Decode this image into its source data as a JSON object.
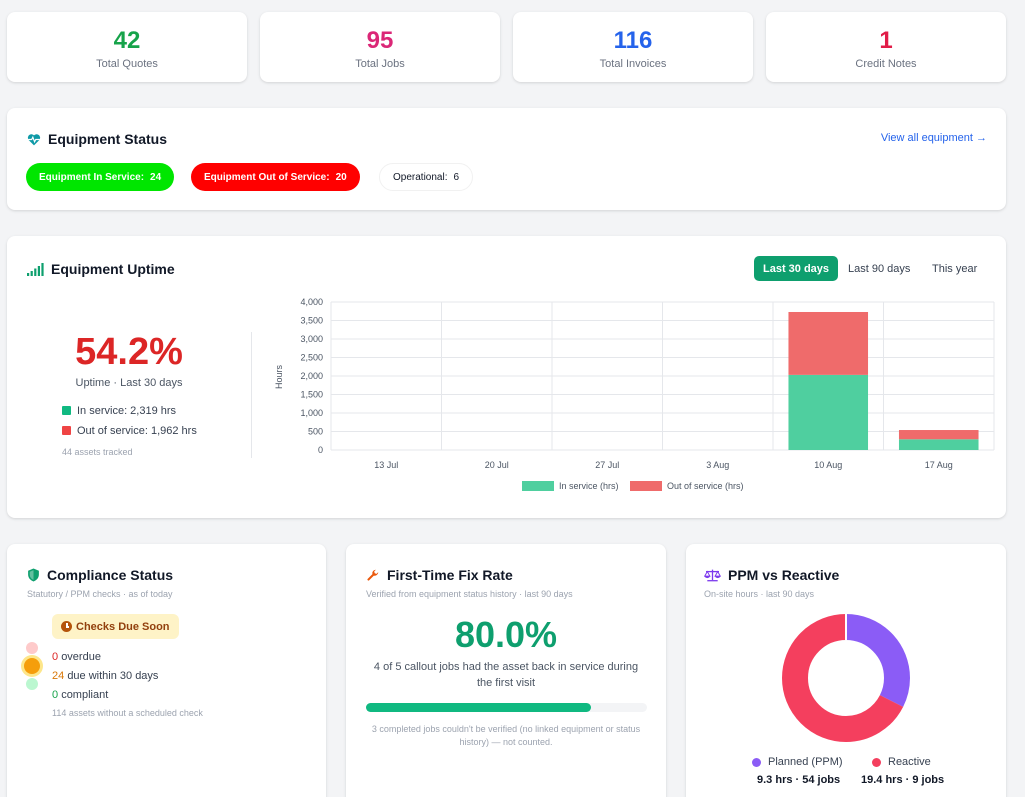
{
  "kpis": [
    {
      "value": "42",
      "label": "Total Quotes",
      "color": "#16a34a"
    },
    {
      "value": "95",
      "label": "Total Jobs",
      "color": "#db2777"
    },
    {
      "value": "116",
      "label": "Total Invoices",
      "color": "#2563eb"
    },
    {
      "value": "1",
      "label": "Credit Notes",
      "color": "#e11d48"
    }
  ],
  "equipment_status": {
    "title": "Equipment Status",
    "view_all": "View all equipment →",
    "in_service": {
      "label": "Equipment In Service:",
      "value": "24",
      "color": "#00e600"
    },
    "out_of_service": {
      "label": "Equipment Out of Service:",
      "value": "20",
      "color": "#ff0000"
    },
    "operational": {
      "label": "Operational:",
      "value": "6"
    }
  },
  "uptime": {
    "title": "Equipment Uptime",
    "ranges": [
      "Last 30 days",
      "Last 90 days",
      "This year"
    ],
    "active_range": "Last 30 days",
    "percent": "54.2%",
    "caption": "Uptime · Last 30 days",
    "in_service": "In service: 2,319 hrs",
    "out_of_service": "Out of service: 1,962 hrs",
    "assets": "44 assets tracked",
    "colors": {
      "in_service": "#4fcf9f",
      "out_of_service": "#ef6b6b"
    }
  },
  "chart_data": {
    "type": "bar",
    "stacked": true,
    "categories": [
      "13 Jul",
      "20 Jul",
      "27 Jul",
      "3 Aug",
      "10 Aug",
      "17 Aug"
    ],
    "series": [
      {
        "name": "In service (hrs)",
        "values": [
          0,
          0,
          0,
          0,
          2030,
          290
        ]
      },
      {
        "name": "Out of service (hrs)",
        "values": [
          0,
          0,
          0,
          0,
          1700,
          250
        ]
      }
    ],
    "ylabel": "Hours",
    "ylim": [
      0,
      4000
    ],
    "yticks": [
      "4,000",
      "3,500",
      "3,000",
      "2,500",
      "2,000",
      "1,500",
      "1,000",
      "500",
      "0"
    ],
    "grid": true,
    "legend": "bottom"
  },
  "compliance": {
    "title": "Compliance Status",
    "subtitle": "Statutory / PPM checks · as of today",
    "badge": "Checks Due Soon",
    "rows": [
      {
        "value": "0",
        "text": "overdue",
        "color": "#dc2626"
      },
      {
        "value": "24",
        "text": "due within 30 days",
        "color": "#d97706"
      },
      {
        "value": "0",
        "text": "compliant",
        "color": "#16a34a"
      }
    ],
    "note": "114 assets without a scheduled check"
  },
  "first_fix": {
    "title": "First-Time Fix Rate",
    "subtitle": "Verified from equipment status history · last 90 days",
    "percent": "80.0%",
    "progress": 0.8,
    "description": "4 of 5 callout jobs had the asset back in service during the first visit",
    "note": "3 completed jobs couldn't be verified (no linked equipment or status history) — not counted."
  },
  "ppm": {
    "title": "PPM vs Reactive",
    "subtitle": "On-site hours · last 90 days",
    "planned": {
      "label": "Planned (PPM)",
      "detail": "9.3 hrs · 54 jobs",
      "value": 9.3,
      "color": "#8b5cf6"
    },
    "reactive": {
      "label": "Reactive",
      "detail": "19.4 hrs · 9 jobs",
      "value": 19.4,
      "color": "#f43f5e"
    }
  }
}
